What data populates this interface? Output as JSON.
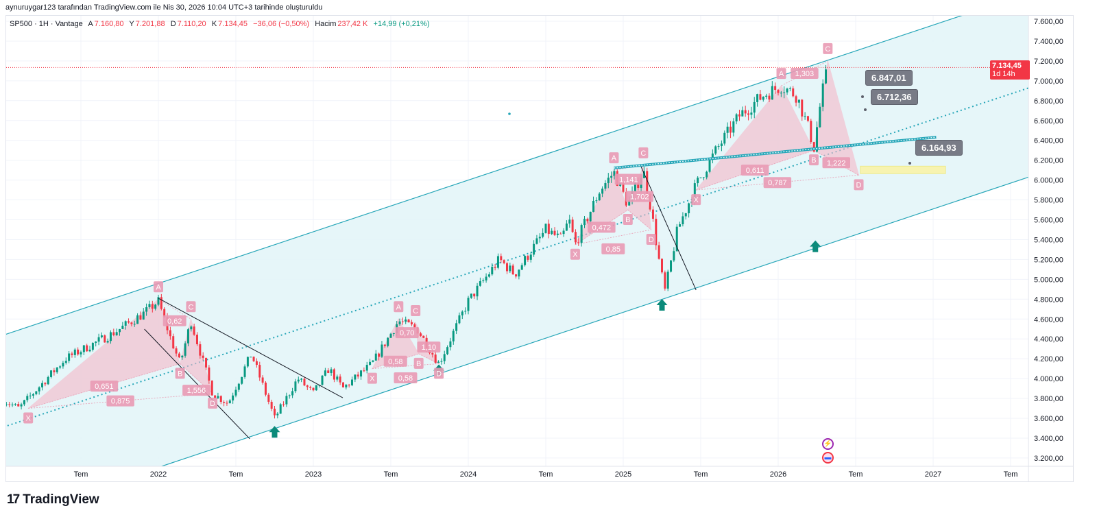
{
  "credit": "aynuruygar123 tarafından TradingView.com ile Nis 30, 2026 10:04 UTC+3 tarihinde oluşturuldu",
  "legend": {
    "symbol": "SP500 · 1H · Vantage",
    "open_label": "A",
    "open": "7.160,80",
    "high_label": "Y",
    "high": "7.201,88",
    "low_label": "D",
    "low": "7.110,20",
    "close_label": "K",
    "close": "7.134,45",
    "change": "−36,06 (−0,50%)",
    "volume_label": "Hacim",
    "volume": "237,42 K",
    "volume_change": "+14,99 (+0,21%)"
  },
  "last_price": {
    "value": "7.134,45",
    "countdown": "1d 14h",
    "color": "#f23645"
  },
  "callouts": [
    "6.847,01",
    "6.712,36",
    "6.164,93"
  ],
  "logo": "TradingView",
  "colors": {
    "up": "#089981",
    "down": "#f23645",
    "channel": "#26a6b8",
    "channel_fill": "#e3f5f8",
    "pattern": "#f5b8c8",
    "pattern_label": "#e99ab4"
  },
  "chart_data": {
    "type": "candlestick",
    "title": "SP500 · 1H · Vantage",
    "ylim": [
      3100,
      7700
    ],
    "xlim": [
      2021.0,
      2027.6
    ],
    "yticks": [
      3200,
      3400,
      3600,
      3800,
      4000,
      4200,
      4400,
      4600,
      4800,
      5000,
      5200,
      5400,
      5600,
      5800,
      6000,
      6200,
      6400,
      6600,
      6800,
      7000,
      7200,
      7400,
      7600
    ],
    "ytick_labels": [
      "3.200,00",
      "3.400,00",
      "3.600,00",
      "3.800,00",
      "4.000,00",
      "4.200,00",
      "4.400,00",
      "4.600,00",
      "4.800,00",
      "5.000,00",
      "5.200,00",
      "5.400,00",
      "5.600,00",
      "5.800,00",
      "6.000,00",
      "6.200,00",
      "6.400,00",
      "6.600,00",
      "6.800,00",
      "7.000,00",
      "7.200,00",
      "7.400,00",
      "7.600,00"
    ],
    "xticks": [
      2021.5,
      2022,
      2022.5,
      2023,
      2023.5,
      2024,
      2024.5,
      2025,
      2025.5,
      2026,
      2026.5,
      2027,
      2027.5
    ],
    "xtick_labels": [
      "Tem",
      "2022",
      "Tem",
      "2023",
      "Tem",
      "2024",
      "Tem",
      "2025",
      "Tem",
      "2026",
      "Tem",
      "2027",
      "Tem"
    ],
    "key_closes": [
      [
        2021.0,
        3780
      ],
      [
        2021.1,
        3700
      ],
      [
        2021.4,
        4200
      ],
      [
        2021.7,
        4450
      ],
      [
        2021.9,
        4650
      ],
      [
        2022.0,
        4780
      ],
      [
        2022.08,
        4400
      ],
      [
        2022.14,
        4150
      ],
      [
        2022.21,
        4580
      ],
      [
        2022.35,
        3850
      ],
      [
        2022.45,
        3750
      ],
      [
        2022.6,
        4250
      ],
      [
        2022.75,
        3600
      ],
      [
        2022.9,
        4000
      ],
      [
        2023.0,
        3850
      ],
      [
        2023.1,
        4100
      ],
      [
        2023.19,
        3900
      ],
      [
        2023.38,
        4150
      ],
      [
        2023.55,
        4580
      ],
      [
        2023.67,
        4500
      ],
      [
        2023.81,
        4150
      ],
      [
        2023.9,
        4450
      ],
      [
        2024.0,
        4780
      ],
      [
        2024.2,
        5200
      ],
      [
        2024.3,
        5050
      ],
      [
        2024.5,
        5500
      ],
      [
        2024.6,
        5400
      ],
      [
        2024.65,
        5600
      ],
      [
        2024.69,
        5350
      ],
      [
        2024.85,
        5900
      ],
      [
        2024.94,
        6080
      ],
      [
        2025.03,
        5750
      ],
      [
        2025.13,
        6100
      ],
      [
        2025.18,
        5700
      ],
      [
        2025.24,
        5100
      ],
      [
        2025.27,
        4880
      ],
      [
        2025.35,
        5500
      ],
      [
        2025.47,
        5950
      ],
      [
        2025.6,
        6300
      ],
      [
        2025.75,
        6650
      ],
      [
        2025.9,
        6850
      ],
      [
        2026.02,
        6950
      ],
      [
        2026.12,
        6850
      ],
      [
        2026.2,
        6500
      ],
      [
        2026.23,
        6320
      ],
      [
        2026.28,
        6850
      ],
      [
        2026.32,
        7134
      ]
    ],
    "channel": {
      "upper": [
        [
          2021.01,
          4443
        ],
        [
          2027.22,
          7676
        ]
      ],
      "middle": [
        [
          2021.01,
          3517
        ],
        [
          2027.62,
          6930
        ]
      ],
      "lower": [
        [
          2022.02,
          3116
        ],
        [
          2027.62,
          6032
        ]
      ]
    },
    "trendlines": [
      [
        [
          2022.0,
          4809
        ],
        [
          2023.19,
          3807
        ]
      ],
      [
        [
          2021.91,
          4498
        ],
        [
          2022.59,
          3393
        ]
      ],
      [
        [
          2025.115,
          6135
        ],
        [
          2025.47,
          4892
        ]
      ]
    ],
    "teal_trendline": [
      [
        2024.94,
        6122
      ],
      [
        2027.02,
        6432
      ]
    ],
    "target_zone": {
      "t": [
        2026.53,
        2027.08
      ],
      "p": [
        6065,
        6140
      ]
    },
    "signal_arrows": [
      [
        2022.75,
        3460
      ],
      [
        2023.81,
        4080
      ],
      [
        2025.25,
        4740
      ],
      [
        2026.24,
        5330
      ]
    ],
    "patterns": [
      {
        "points": {
          "X": [
            2021.16,
            3700
          ],
          "A": [
            2022.0,
            4800
          ],
          "B": [
            2022.14,
            4150
          ],
          "C": [
            2022.21,
            4600
          ],
          "D": [
            2022.35,
            3850
          ]
        },
        "ratios": {
          "XB": "0,651",
          "AC": "0,62",
          "BD": "1,556",
          "XD": "0,875"
        }
      },
      {
        "points": {
          "X": [
            2023.38,
            4100
          ],
          "A": [
            2023.55,
            4600
          ],
          "B": [
            2023.68,
            4250
          ],
          "C": [
            2023.66,
            4560
          ],
          "D": [
            2023.81,
            4150
          ]
        },
        "ratios": {
          "XB": "0,58",
          "AC": "0,70",
          "BD": "1,10",
          "XD": "0,58"
        }
      },
      {
        "points": {
          "X": [
            2024.69,
            5350
          ],
          "A": [
            2024.94,
            6100
          ],
          "B": [
            2025.03,
            5700
          ],
          "C": [
            2025.13,
            6150
          ],
          "D": [
            2025.18,
            5500
          ]
        },
        "ratios": {
          "XB": "0,472",
          "AC": "1,141",
          "BD": "1,702",
          "XD": "0,85"
        }
      },
      {
        "points": {
          "X": [
            2025.47,
            5900
          ],
          "A": [
            2026.02,
            6950
          ],
          "B": [
            2026.23,
            6300
          ],
          "C": [
            2026.32,
            7200
          ],
          "D": [
            2026.52,
            6050
          ]
        },
        "ratios": {
          "XB": "0,611",
          "AC": "1,303",
          "BD": "1,222",
          "XD": "0,787"
        }
      }
    ]
  }
}
